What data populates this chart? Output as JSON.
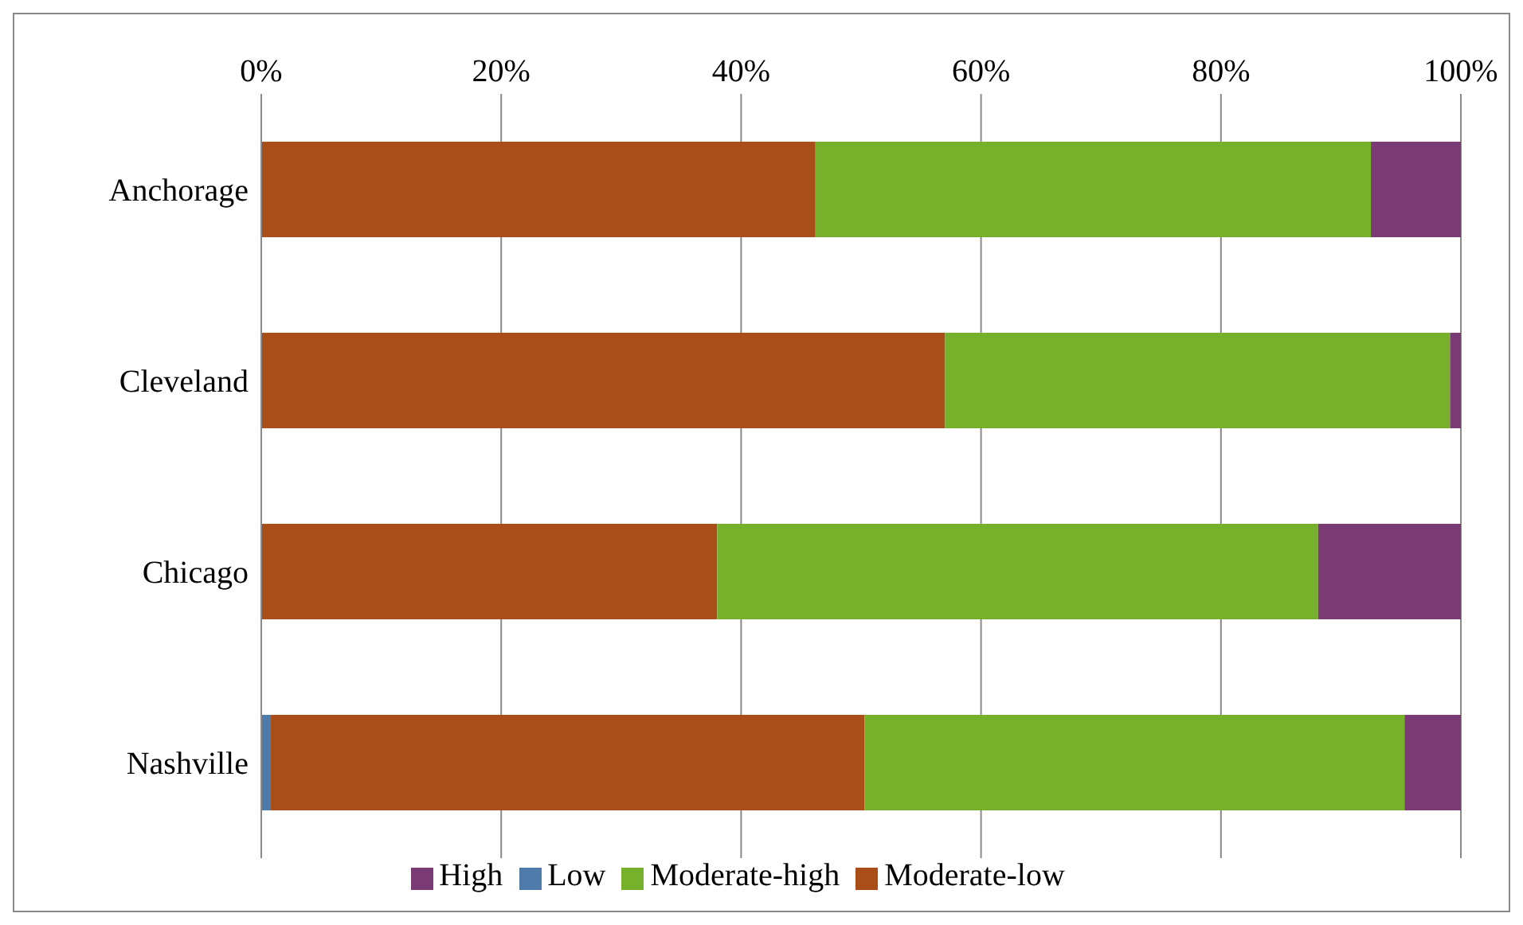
{
  "chart_data": {
    "type": "bar",
    "orientation": "horizontal",
    "stacked": true,
    "categories": [
      "Anchorage",
      "Cleveland",
      "Chicago",
      "Nashville"
    ],
    "series": [
      {
        "name": "Low",
        "color": "#4f7bab",
        "values": [
          0,
          0,
          0,
          0.8
        ]
      },
      {
        "name": "Moderate-low",
        "color": "#a94e18",
        "values": [
          46.2,
          57.0,
          38.0,
          49.5
        ]
      },
      {
        "name": "Moderate-high",
        "color": "#77b02a",
        "values": [
          46.3,
          42.1,
          50.1,
          45.0
        ]
      },
      {
        "name": "High",
        "color": "#7a3b74",
        "values": [
          7.5,
          0.9,
          11.9,
          4.7
        ]
      }
    ],
    "xlim": [
      0,
      100
    ],
    "xticks": [
      {
        "value": 0,
        "label": "0%"
      },
      {
        "value": 20,
        "label": "20%"
      },
      {
        "value": 40,
        "label": "40%"
      },
      {
        "value": 60,
        "label": "60%"
      },
      {
        "value": 80,
        "label": "80%"
      },
      {
        "value": 100,
        "label": "100%"
      }
    ],
    "grid": "x",
    "legend": "bottom"
  }
}
